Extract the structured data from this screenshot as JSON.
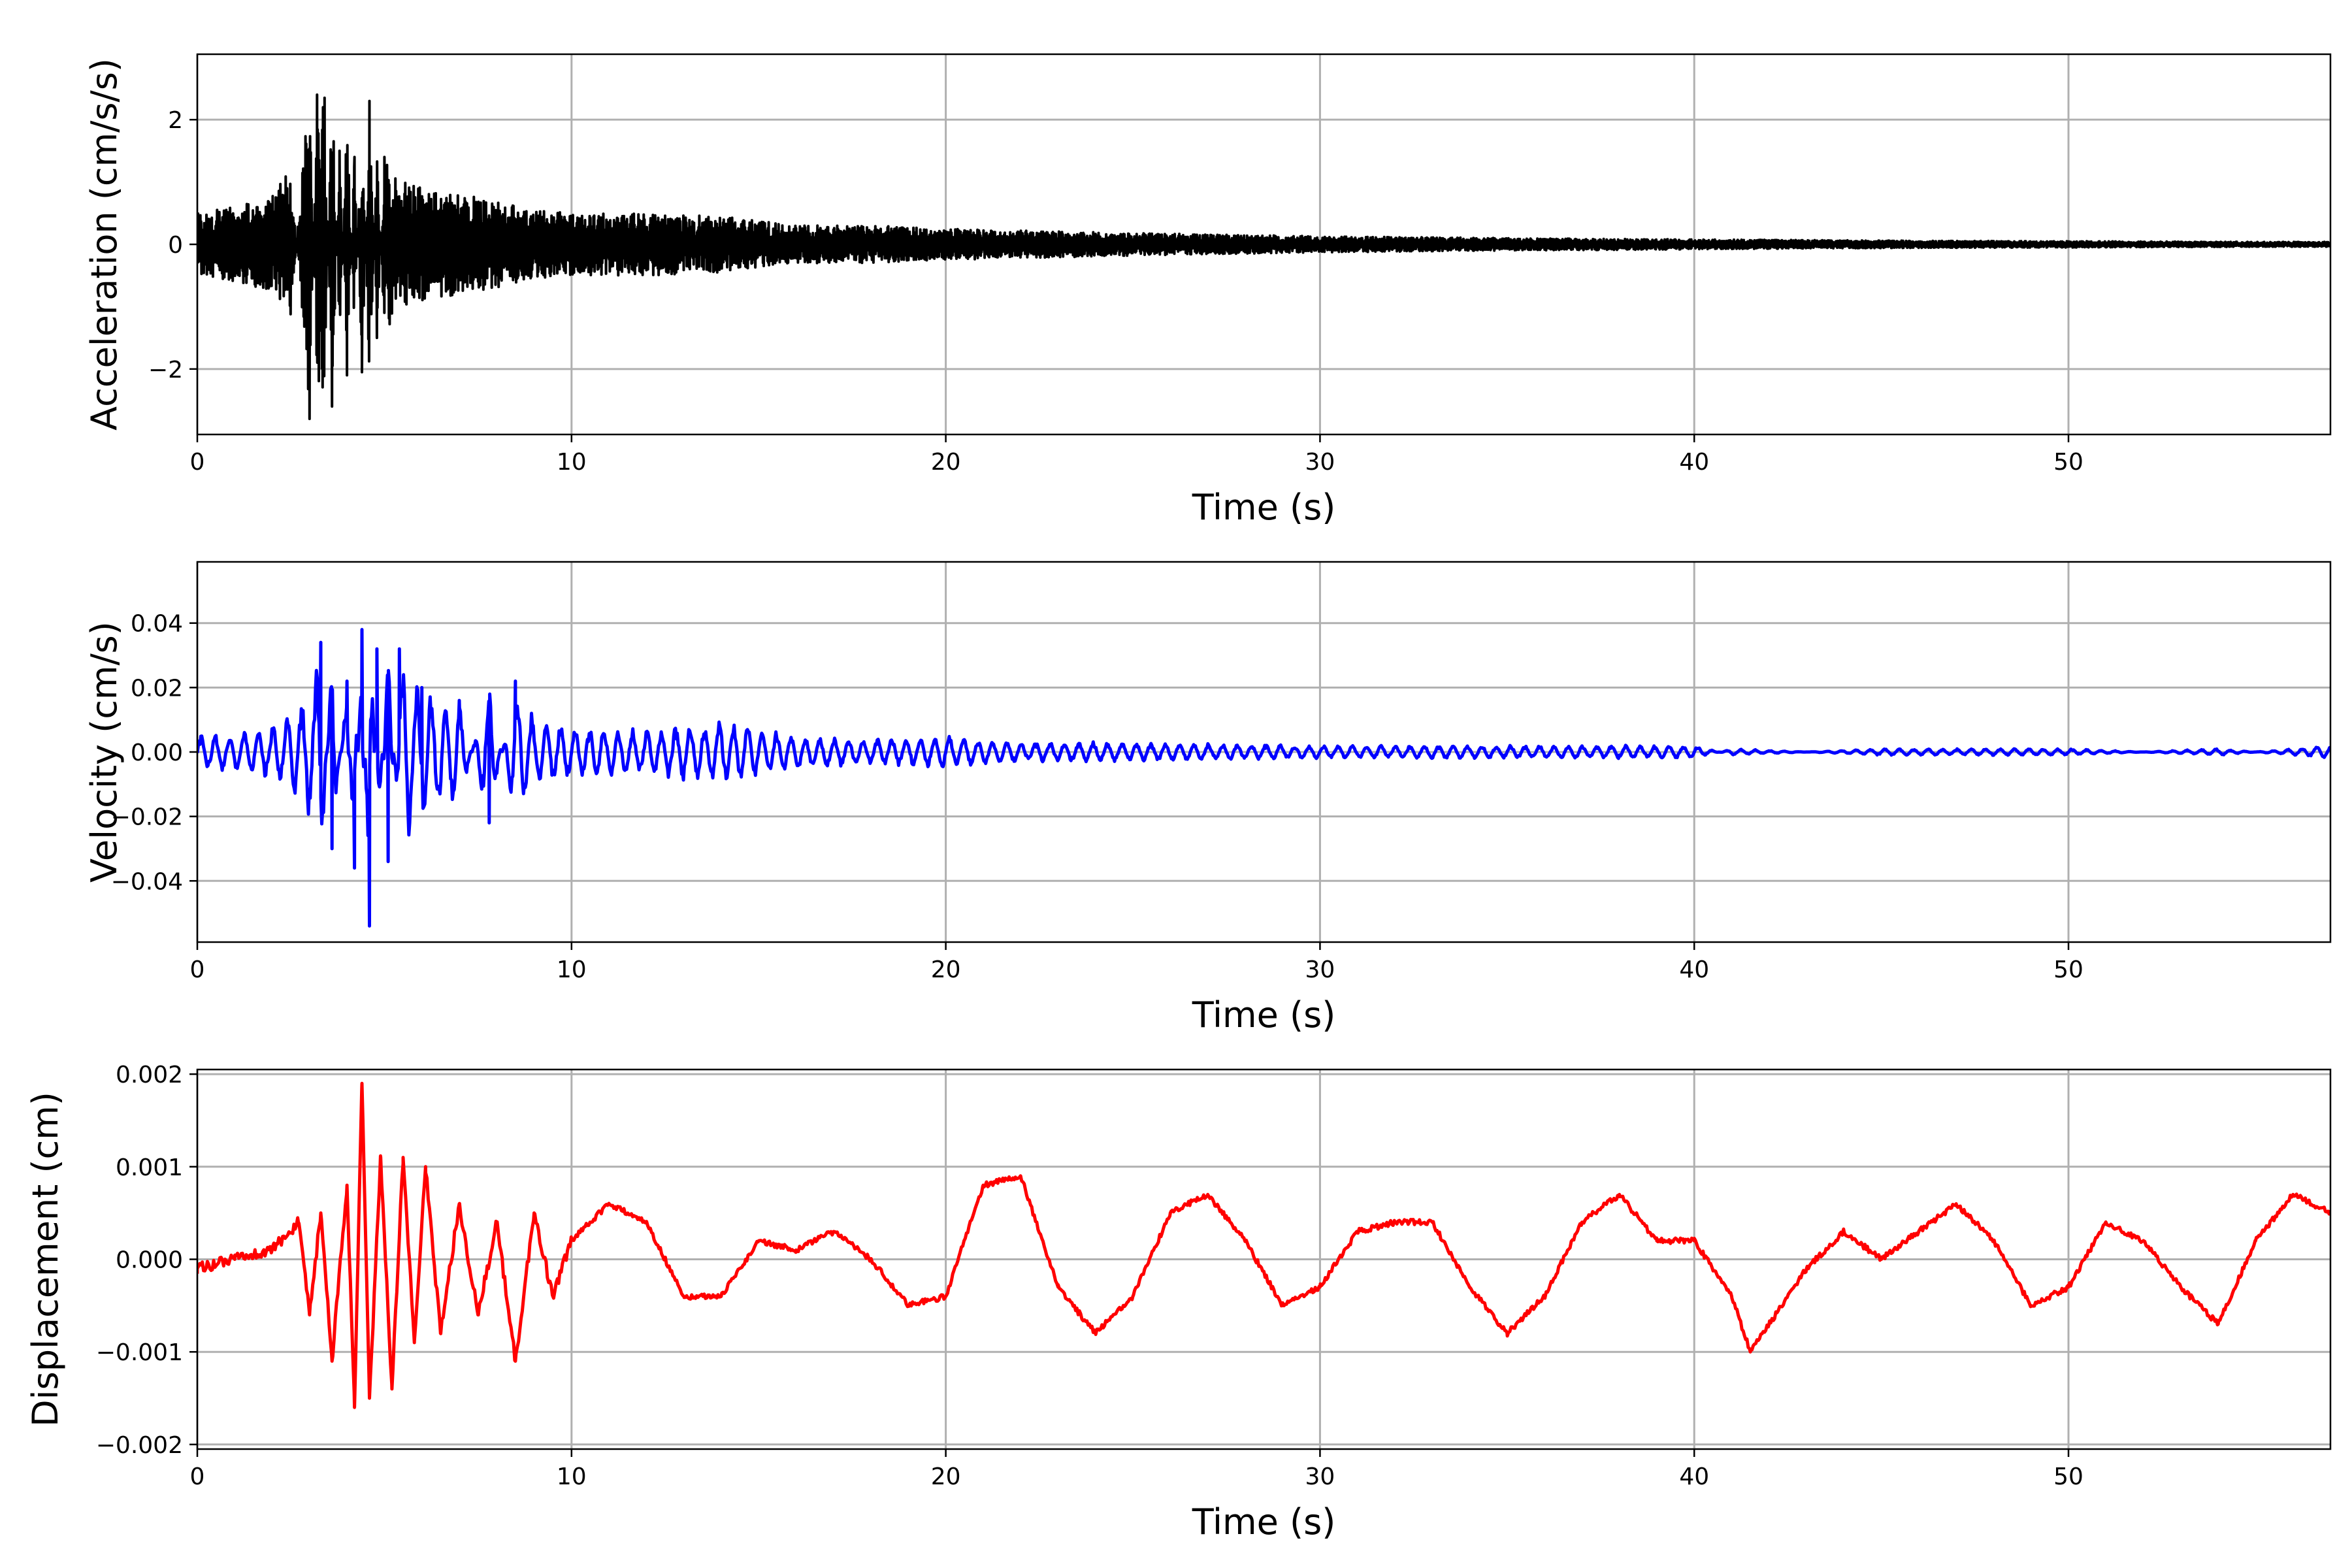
{
  "colors": {
    "acceleration": "#000000",
    "velocity": "#0000ff",
    "displacement": "#ff0000",
    "grid": "#b0b0b0",
    "axes": "#000000"
  },
  "chart_data": [
    {
      "type": "line",
      "xlabel": "Time (s)",
      "ylabel": "Acceleration (cm/s/s)",
      "xlim": [
        0,
        57
      ],
      "ylim": [
        -3.05,
        3.05
      ],
      "xticks": [
        0,
        10,
        20,
        30,
        40,
        50
      ],
      "xtick_labels": [
        "0",
        "10",
        "20",
        "30",
        "40",
        "50"
      ],
      "yticks": [
        -2,
        0,
        2
      ],
      "ytick_labels": [
        "−2",
        "0",
        "2"
      ],
      "grid": true,
      "series": [
        {
          "color": "#000000",
          "x": [
            0,
            1,
            2,
            2.5,
            3,
            3.2,
            3.4,
            3.6,
            3.8,
            4,
            4.2,
            4.4,
            4.6,
            4.8,
            5,
            5.5,
            6,
            7,
            8,
            9,
            10,
            12,
            14,
            16,
            18,
            20,
            25,
            30,
            35,
            40,
            45,
            50,
            55,
            57
          ],
          "y": [
            0.5,
            0.6,
            0.8,
            1.2,
            -2.8,
            2.4,
            2.35,
            -2.6,
            1.5,
            -2.1,
            1.4,
            -2.05,
            2.3,
            -1.5,
            1.4,
            1.0,
            0.9,
            0.8,
            0.7,
            0.55,
            0.5,
            0.5,
            0.45,
            0.3,
            0.3,
            0.25,
            0.18,
            0.13,
            0.1,
            0.08,
            0.06,
            0.05,
            0.04,
            0.04
          ]
        }
      ]
    },
    {
      "type": "line",
      "xlabel": "Time (s)",
      "ylabel": "Velocity (cm/s)",
      "xlim": [
        0,
        57
      ],
      "ylim": [
        -0.059,
        0.059
      ],
      "xticks": [
        0,
        10,
        20,
        30,
        40,
        50
      ],
      "xtick_labels": [
        "0",
        "10",
        "20",
        "30",
        "40",
        "50"
      ],
      "yticks": [
        -0.04,
        -0.02,
        0.0,
        0.02,
        0.04
      ],
      "ytick_labels": [
        "−0.04",
        "−0.02",
        "0.00",
        "0.02",
        "0.04"
      ],
      "grid": true,
      "series": [
        {
          "color": "#0000ff",
          "x": [
            0,
            1,
            2,
            2.5,
            3,
            3.3,
            3.6,
            4,
            4.2,
            4.4,
            4.6,
            4.8,
            5.1,
            5.4,
            6,
            7,
            7.8,
            8.5,
            9,
            10,
            12,
            14,
            16,
            18,
            20,
            22,
            25,
            30,
            35,
            40,
            41,
            45,
            50,
            54,
            57
          ],
          "y": [
            0.005,
            0.006,
            0.008,
            0.012,
            0.02,
            0.034,
            -0.03,
            0.022,
            -0.036,
            0.038,
            -0.054,
            0.032,
            -0.034,
            0.032,
            0.02,
            0.016,
            -0.022,
            0.022,
            0.01,
            0.008,
            0.007,
            0.01,
            0.005,
            0.004,
            0.005,
            0.003,
            0.003,
            0.002,
            0.002,
            0.002,
            -0.001,
            0.001,
            0.001,
            -0.001,
            0.002
          ]
        }
      ]
    },
    {
      "type": "line",
      "xlabel": "Time (s)",
      "ylabel": "Displacement (cm)",
      "xlim": [
        0,
        57
      ],
      "ylim": [
        -0.00205,
        0.00205
      ],
      "xticks": [
        0,
        10,
        20,
        30,
        40,
        50
      ],
      "xtick_labels": [
        "0",
        "10",
        "20",
        "30",
        "40",
        "50"
      ],
      "yticks": [
        -0.002,
        -0.001,
        0.0,
        0.001,
        0.002
      ],
      "ytick_labels": [
        "−0.002",
        "−0.001",
        "0.000",
        "0.001",
        "0.002"
      ],
      "grid": true,
      "series": [
        {
          "color": "#ff0000",
          "x": [
            0,
            1,
            2,
            2.7,
            3,
            3.3,
            3.6,
            4,
            4.2,
            4.4,
            4.6,
            4.9,
            5.2,
            5.5,
            5.8,
            6.1,
            6.5,
            7,
            7.5,
            8,
            8.5,
            9,
            9.5,
            10,
            11,
            12,
            13,
            14,
            15,
            16,
            17,
            18,
            19,
            20,
            21,
            22,
            23,
            24,
            25,
            26,
            27,
            28,
            29,
            30,
            31,
            32,
            33,
            34,
            35,
            36,
            37,
            38,
            39,
            40,
            41,
            41.5,
            42,
            43,
            44,
            45,
            46,
            47,
            48,
            49,
            50,
            51,
            52,
            53,
            54,
            55,
            56,
            57
          ],
          "y": [
            -0.0001,
            0.0,
            0.0001,
            0.0004,
            -0.0006,
            0.0005,
            -0.0011,
            0.0008,
            -0.0016,
            0.0019,
            -0.0015,
            0.0011,
            -0.0014,
            0.0011,
            -0.0009,
            0.001,
            -0.0008,
            0.0006,
            -0.0006,
            0.0004,
            -0.0011,
            0.0005,
            -0.0004,
            0.0002,
            0.0006,
            0.0004,
            -0.0004,
            -0.0004,
            0.0002,
            0.0001,
            0.0003,
            0.0,
            -0.0005,
            -0.0004,
            0.0008,
            0.0009,
            -0.0003,
            -0.0008,
            -0.0004,
            0.0005,
            0.0007,
            0.0002,
            -0.0005,
            -0.0003,
            0.0003,
            0.0004,
            0.0004,
            -0.0003,
            -0.0008,
            -0.0004,
            0.0004,
            0.0007,
            0.0002,
            0.0002,
            -0.0004,
            -0.001,
            -0.0007,
            -0.0001,
            0.0003,
            0.0,
            0.0003,
            0.0006,
            0.0002,
            -0.0005,
            -0.0003,
            0.0004,
            0.0002,
            -0.0003,
            -0.0007,
            0.0002,
            0.0007,
            0.0005
          ]
        }
      ]
    }
  ]
}
